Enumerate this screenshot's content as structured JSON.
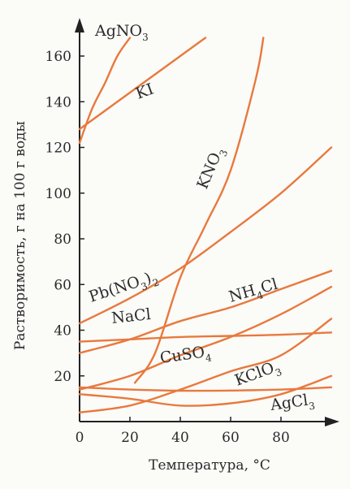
{
  "chart_data": {
    "type": "line",
    "title": "",
    "xlabel": "Температура, °С",
    "ylabel": "Растворимость, г на 100 г воды",
    "xlim": [
      0,
      100
    ],
    "ylim": [
      0,
      170
    ],
    "xticks": [
      "0",
      "20",
      "40",
      "60",
      "80"
    ],
    "yticks": [
      "20",
      "40",
      "60",
      "80",
      "100",
      "120",
      "140",
      "160"
    ],
    "line_color": "#e8793d",
    "series": [
      {
        "name": "AgNO3",
        "x": [
          0,
          5,
          10,
          15,
          20
        ],
        "y": [
          122,
          137,
          148,
          160,
          168
        ]
      },
      {
        "name": "KI",
        "x": [
          0,
          10,
          20,
          30,
          40,
          50
        ],
        "y": [
          128,
          136,
          144,
          152,
          160,
          168
        ]
      },
      {
        "name": "KNO3",
        "x": [
          22,
          30,
          40,
          50,
          60,
          70,
          73
        ],
        "y": [
          17,
          30,
          63,
          86,
          110,
          150,
          168
        ]
      },
      {
        "name": "Pb(NO3)2",
        "x": [
          0,
          20,
          40,
          60,
          80,
          100
        ],
        "y": [
          43,
          54,
          67,
          83,
          100,
          120
        ]
      },
      {
        "name": "NaCl",
        "x": [
          0,
          20,
          40,
          60,
          80,
          100
        ],
        "y": [
          35,
          36,
          37,
          37.5,
          38,
          39
        ]
      },
      {
        "name": "NH4Cl",
        "x": [
          0,
          20,
          40,
          60,
          80,
          100
        ],
        "y": [
          30,
          36,
          44,
          50,
          58,
          66
        ]
      },
      {
        "name": "CuSO4",
        "x": [
          0,
          20,
          40,
          60,
          80,
          100
        ],
        "y": [
          14,
          20,
          29,
          37,
          47,
          59
        ]
      },
      {
        "name": "KClO3",
        "x": [
          0,
          20,
          40,
          60,
          80,
          100
        ],
        "y": [
          4,
          7,
          14,
          22,
          29,
          45
        ]
      },
      {
        "name": "AgCl3",
        "x": [
          0,
          20,
          40,
          60,
          80,
          100
        ],
        "y": [
          12,
          10,
          7,
          8,
          12,
          20
        ]
      },
      {
        "name": "",
        "x": [
          0,
          20,
          40,
          60,
          80,
          100
        ],
        "y": [
          15,
          14,
          13.5,
          13.6,
          14,
          15
        ]
      }
    ]
  },
  "labels": {
    "agno3": {
      "main": "AgNO",
      "sub": "3"
    },
    "ki": "KI",
    "kno3": {
      "a": "KNO",
      "sub": "3"
    },
    "pbno32": {
      "a": "Pb(NO",
      "sub1": "3",
      "b": ")",
      "sub2": "2"
    },
    "nacl": "NaCl",
    "nh4cl": {
      "a": "NH",
      "sub": "4",
      "b": "Cl"
    },
    "cuso4": {
      "a": "CuSO",
      "sub": "4"
    },
    "kclo3": {
      "a": "KClO",
      "sub": "3"
    },
    "agcl3": {
      "a": "AgCl",
      "sub": "3"
    }
  }
}
